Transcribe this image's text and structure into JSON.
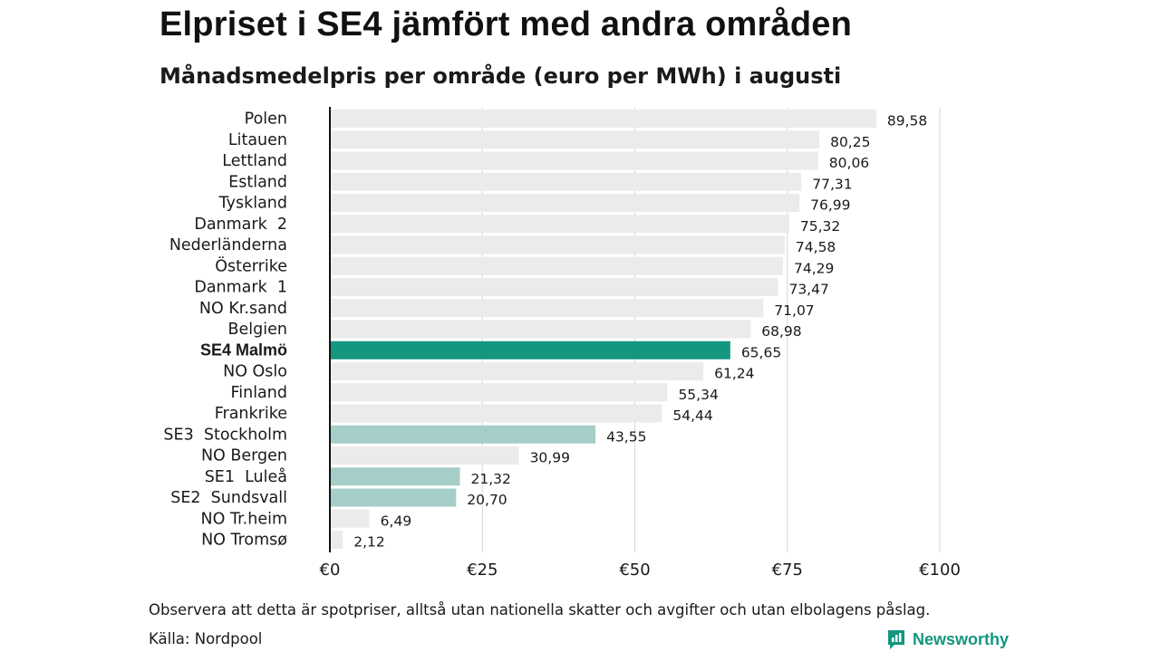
{
  "header": {
    "title": "Elpriset i SE4 jämfört med andra områden",
    "subtitle": "Månadsmedelpris per område (euro per MWh) i augusti"
  },
  "footer": {
    "note": "Observera att detta är spotpriser, alltså utan nationella skatter och avgifter och utan elbolagens påslag.",
    "source": "Källa: Nordpool",
    "brand": "Newsworthy"
  },
  "colors": {
    "highlight": "#14967f",
    "swedish": "#a5cec8",
    "other": "#ebebeb",
    "brand": "#14967f"
  },
  "chart_data": {
    "type": "bar",
    "orientation": "horizontal",
    "title": "Elpriset i SE4 jämfört med andra områden",
    "subtitle": "Månadsmedelpris per område (euro per MWh) i augusti",
    "xlim": [
      0,
      100
    ],
    "x_ticks": [
      0,
      25,
      50,
      75,
      100
    ],
    "x_tick_labels": [
      "€0",
      "€25",
      "€50",
      "€75",
      "€100"
    ],
    "grid": "vertical",
    "categories": [
      "Polen",
      "Litauen",
      "Lettland",
      "Estland",
      "Tyskland",
      "Danmark  2",
      "Nederländerna",
      "Österrike",
      "Danmark  1",
      "NO Kr.sand",
      "Belgien",
      "SE4 Malmö",
      "NO Oslo",
      "Finland",
      "Frankrike",
      "SE3  Stockholm",
      "NO Bergen",
      "SE1  Luleå",
      "SE2  Sundsvall",
      "NO Tr.heim",
      "NO Tromsø"
    ],
    "values": [
      89.58,
      80.25,
      80.06,
      77.31,
      76.99,
      75.32,
      74.58,
      74.29,
      73.47,
      71.07,
      68.98,
      65.65,
      61.24,
      55.34,
      54.44,
      43.55,
      30.99,
      21.32,
      20.7,
      6.49,
      2.12
    ],
    "value_labels": [
      "89,58",
      "80,25",
      "80,06",
      "77,31",
      "76,99",
      "75,32",
      "74,58",
      "74,29",
      "73,47",
      "71,07",
      "68,98",
      "65,65",
      "61,24",
      "55,34",
      "54,44",
      "43,55",
      "30,99",
      "21,32",
      "20,70",
      "6,49",
      "2,12"
    ],
    "bar_group": [
      "other",
      "other",
      "other",
      "other",
      "other",
      "other",
      "other",
      "other",
      "other",
      "other",
      "other",
      "highlight",
      "other",
      "other",
      "other",
      "swedish",
      "other",
      "swedish",
      "swedish",
      "other",
      "other"
    ]
  }
}
